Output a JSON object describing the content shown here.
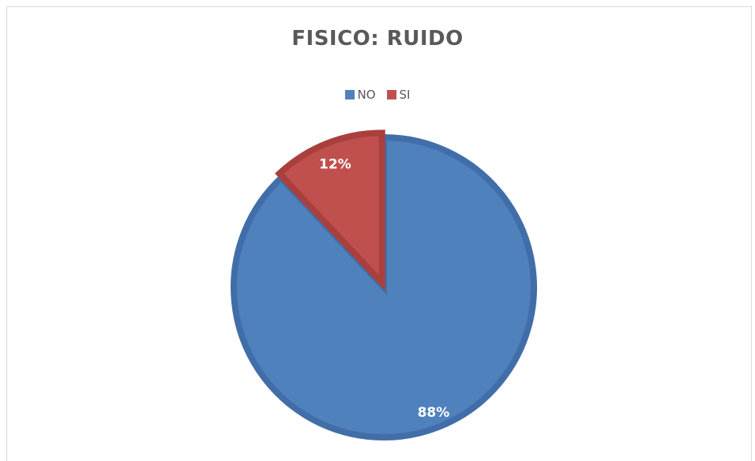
{
  "chart_data": {
    "type": "pie",
    "title": "FISICO: RUIDO",
    "categories": [
      "NO",
      "SI"
    ],
    "values": [
      88,
      12
    ],
    "labels": [
      "88%",
      "12%"
    ],
    "colors": [
      "#4f81bd",
      "#c0504d"
    ],
    "border_colors": [
      "#416ea8",
      "#a9403d"
    ],
    "legend_position": "top"
  }
}
